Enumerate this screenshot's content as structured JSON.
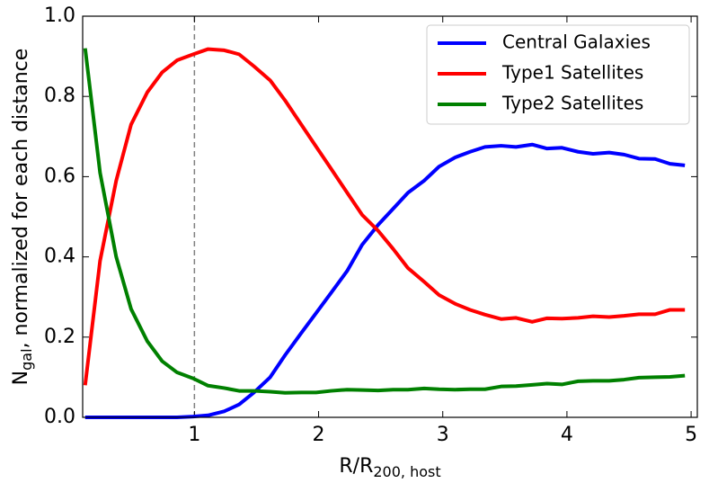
{
  "chart_data": {
    "type": "line",
    "xlabel": {
      "main": "R/R",
      "sub": "200, host"
    },
    "ylabel": {
      "main": "N",
      "sub": "gal",
      "rest": ", normalized for each distance"
    },
    "x": [
      0.12,
      0.24,
      0.37,
      0.49,
      0.62,
      0.74,
      0.86,
      0.99,
      1.11,
      1.24,
      1.36,
      1.48,
      1.61,
      1.73,
      1.86,
      1.98,
      2.1,
      2.23,
      2.35,
      2.48,
      2.6,
      2.72,
      2.85,
      2.97,
      3.1,
      3.22,
      3.34,
      3.47,
      3.59,
      3.72,
      3.84,
      3.96,
      4.09,
      4.21,
      4.34,
      4.46,
      4.58,
      4.71,
      4.83,
      4.95
    ],
    "series": [
      {
        "name": "Central Galaxies",
        "color": "#0000ff",
        "values": [
          0,
          0,
          0,
          0,
          0,
          0,
          0,
          0.002,
          0.005,
          0.015,
          0.032,
          0.062,
          0.1,
          0.155,
          0.21,
          0.26,
          0.31,
          0.365,
          0.43,
          0.48,
          0.52,
          0.56,
          0.59,
          0.625,
          0.648,
          0.662,
          0.674,
          0.677,
          0.674,
          0.68,
          0.67,
          0.672,
          0.662,
          0.657,
          0.66,
          0.655,
          0.645,
          0.644,
          0.632,
          0.628
        ]
      },
      {
        "name": "Type1 Satellites",
        "color": "#ff0000",
        "values": [
          0.08,
          0.39,
          0.59,
          0.73,
          0.81,
          0.86,
          0.89,
          0.905,
          0.918,
          0.915,
          0.905,
          0.875,
          0.84,
          0.79,
          0.73,
          0.675,
          0.62,
          0.56,
          0.505,
          0.465,
          0.42,
          0.372,
          0.338,
          0.305,
          0.283,
          0.268,
          0.256,
          0.245,
          0.248,
          0.238,
          0.247,
          0.246,
          0.248,
          0.252,
          0.25,
          0.253,
          0.257,
          0.257,
          0.268,
          0.268
        ]
      },
      {
        "name": "Type2 Satellites",
        "color": "#008000",
        "values": [
          0.92,
          0.61,
          0.4,
          0.27,
          0.19,
          0.14,
          0.112,
          0.097,
          0.079,
          0.073,
          0.066,
          0.066,
          0.064,
          0.061,
          0.062,
          0.062,
          0.066,
          0.069,
          0.068,
          0.067,
          0.069,
          0.069,
          0.072,
          0.07,
          0.069,
          0.07,
          0.07,
          0.077,
          0.078,
          0.081,
          0.084,
          0.082,
          0.09,
          0.091,
          0.091,
          0.094,
          0.099,
          0.1,
          0.101,
          0.104
        ]
      }
    ],
    "xlim": [
      0.1,
      5.05
    ],
    "ylim": [
      0,
      1
    ],
    "xticks": [
      1,
      2,
      3,
      4,
      5
    ],
    "yticks": [
      {
        "value": 0,
        "label": "0.0"
      },
      {
        "value": 0.2,
        "label": "0.2"
      },
      {
        "value": 0.4,
        "label": "0.4"
      },
      {
        "value": 0.6,
        "label": "0.6"
      },
      {
        "value": 0.8,
        "label": "0.8"
      },
      {
        "value": 1,
        "label": "1.0"
      }
    ],
    "vline": 1,
    "vline_color": "#808080",
    "legend": "upper right"
  }
}
